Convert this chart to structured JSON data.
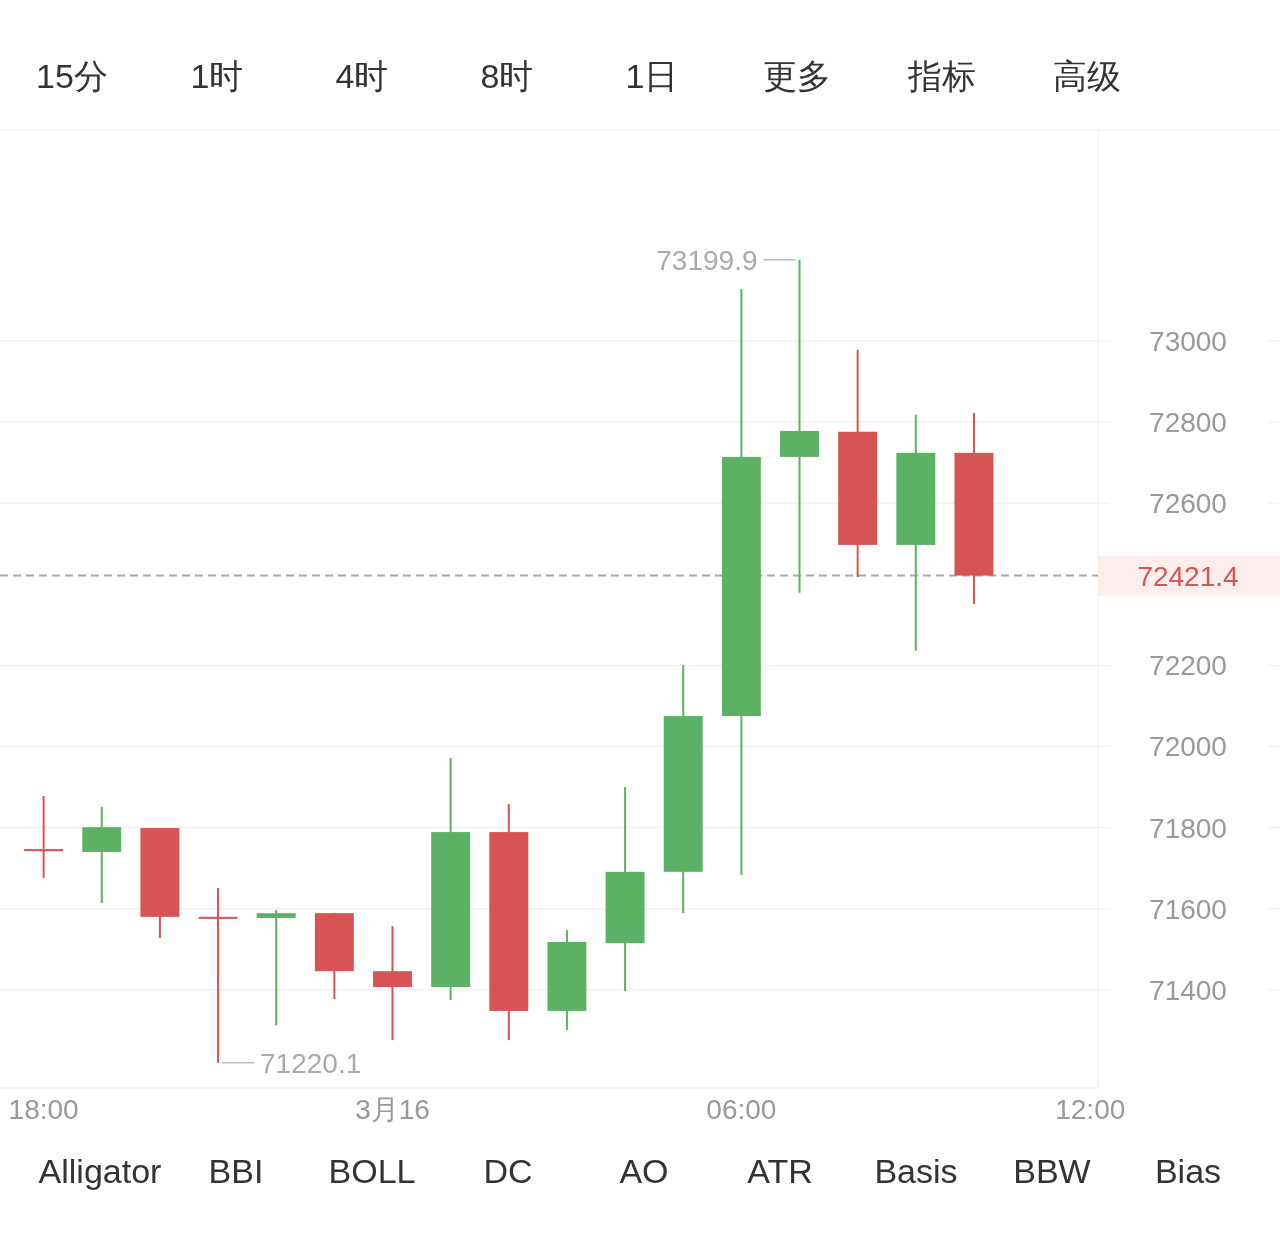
{
  "chart_data": {
    "type": "candlestick",
    "x": [
      "--03-15T18:00",
      "--03-15T19:00",
      "--03-15T20:00",
      "--03-15T21:00",
      "--03-15T22:00",
      "--03-15T23:00",
      "--03-16T00:00",
      "--03-16T01:00",
      "--03-16T02:00",
      "--03-16T03:00",
      "--03-16T04:00",
      "--03-16T05:00",
      "--03-16T06:00",
      "--03-16T07:00",
      "--03-16T08:00",
      "--03-16T09:00",
      "--03-16T10:00"
    ],
    "ohlc": [
      [
        71747,
        71878,
        71676,
        71742
      ],
      [
        71740,
        71851,
        71614,
        71801
      ],
      [
        71799,
        71799,
        71528,
        71580
      ],
      [
        71580,
        71651,
        71220.1,
        71577
      ],
      [
        71577,
        71597,
        71313,
        71589
      ],
      [
        71589,
        71590,
        71377,
        71446
      ],
      [
        71446,
        71557,
        71276,
        71407
      ],
      [
        71407,
        71972,
        71375,
        71789
      ],
      [
        71789,
        71858,
        71276,
        71348
      ],
      [
        71348,
        71547,
        71301,
        71518
      ],
      [
        71515,
        71900,
        71397,
        71691
      ],
      [
        71691,
        72201,
        71589,
        72075
      ],
      [
        72075,
        73128,
        71683,
        72714
      ],
      [
        72714,
        73199.9,
        72379,
        72778
      ],
      [
        72776,
        72978,
        72418,
        72497
      ],
      [
        72497,
        72818,
        72236,
        72724
      ],
      [
        72724,
        72822,
        72351,
        72421.4
      ]
    ],
    "colors": [
      "#d65454",
      "#5cb264",
      "#d65454",
      "#d65454",
      "#5cb264",
      "#d65454",
      "#d65454",
      "#5cb264",
      "#d65454",
      "#5cb264",
      "#5cb264",
      "#5cb264",
      "#5cb264",
      "#5cb264",
      "#d65454",
      "#5cb264",
      "#d65454"
    ],
    "xlim": [
      "--03-15T17:15",
      "--03-16T12:08"
    ],
    "xticks": [
      {
        "value": "--03-15T18:00",
        "label": "18:00"
      },
      {
        "value": "--03-16T00:00",
        "label": "3月16"
      },
      {
        "value": "--03-16T06:00",
        "label": "06:00"
      },
      {
        "value": "--03-16T12:00",
        "label": "12:00"
      }
    ],
    "ylim": [
      71158,
      73520
    ],
    "yticks": [
      71400,
      71600,
      71800,
      72000,
      72200,
      72600,
      72800,
      73000
    ],
    "grid": "y",
    "ref_lines": [
      {
        "axis": "y",
        "value": 72421.4,
        "label": "72421.4",
        "color": "#aaaaaa",
        "line_style": "dashed"
      }
    ],
    "annotations": [
      "15分",
      "1时",
      "4时",
      "8时",
      "1日",
      "更多",
      "指标",
      "高级",
      "Alligator",
      "BBI",
      "BOLL",
      "DC",
      "AO",
      "ATR",
      "Basis",
      "BBW",
      "Bias",
      {
        "text": "73199.9",
        "x": "--03-16T07:00",
        "y": 73199.9
      },
      {
        "text": "71220.1",
        "x": "--03-15T21:00",
        "y": 71220.1
      }
    ]
  }
}
